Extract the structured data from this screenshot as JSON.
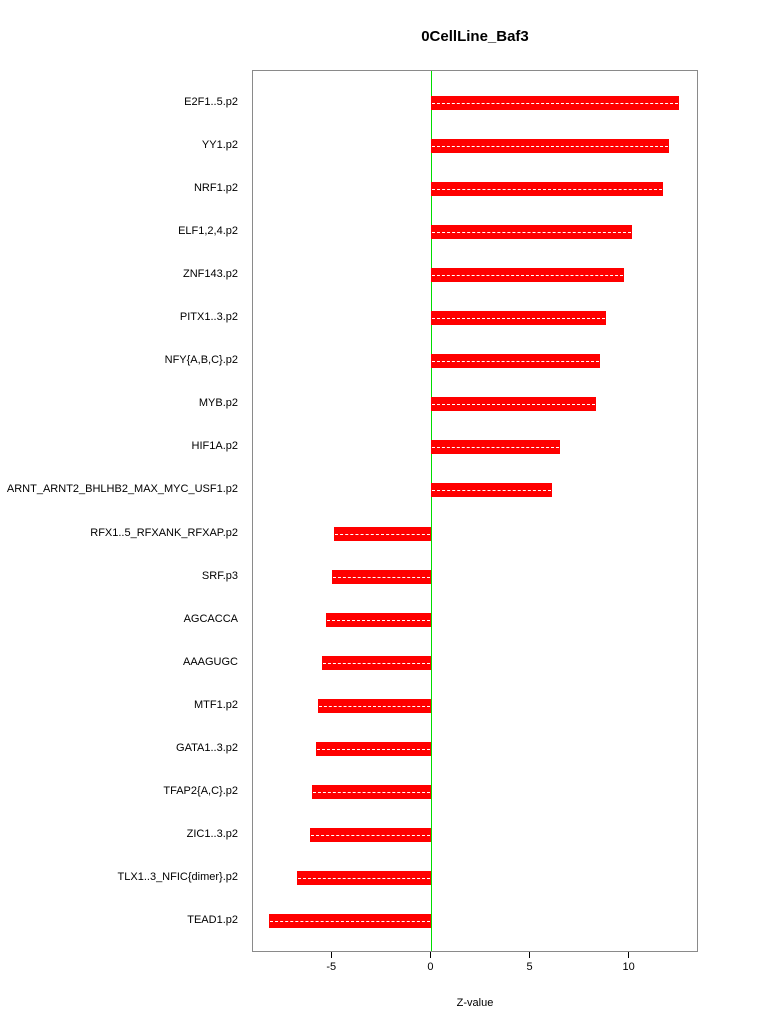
{
  "chart_data": {
    "type": "bar",
    "orientation": "horizontal",
    "title": "0CellLine_Baf3",
    "xlabel": "Z-value",
    "ylabel": "",
    "categories": [
      "E2F1..5.p2",
      "YY1.p2",
      "NRF1.p2",
      "ELF1,2,4.p2",
      "ZNF143.p2",
      "PITX1..3.p2",
      "NFY{A,B,C}.p2",
      "MYB.p2",
      "HIF1A.p2",
      "ARNT_ARNT2_BHLHB2_MAX_MYC_USF1.p2",
      "RFX1..5_RFXANK_RFXAP.p2",
      "SRF.p3",
      "AGCACCA",
      "AAAGUGC",
      "MTF1.p2",
      "GATA1..3.p2",
      "TFAP2{A,C}.p2",
      "ZIC1..3.p2",
      "TLX1..3_NFIC{dimer}.p2",
      "TEAD1.p2"
    ],
    "values": [
      12.5,
      12.0,
      11.7,
      10.1,
      9.7,
      8.8,
      8.5,
      8.3,
      6.5,
      6.1,
      -4.9,
      -5.0,
      -5.3,
      -5.5,
      -5.7,
      -5.8,
      -6.0,
      -6.1,
      -6.8,
      -8.2
    ],
    "xlim": [
      -9.0,
      13.5
    ],
    "xticks": [
      -5,
      0,
      5,
      10
    ],
    "bar_color": "#ff0000",
    "bar_dash_color": "#ffffff",
    "zero_line_color": "#00dd00",
    "grid": false,
    "legend": false
  }
}
